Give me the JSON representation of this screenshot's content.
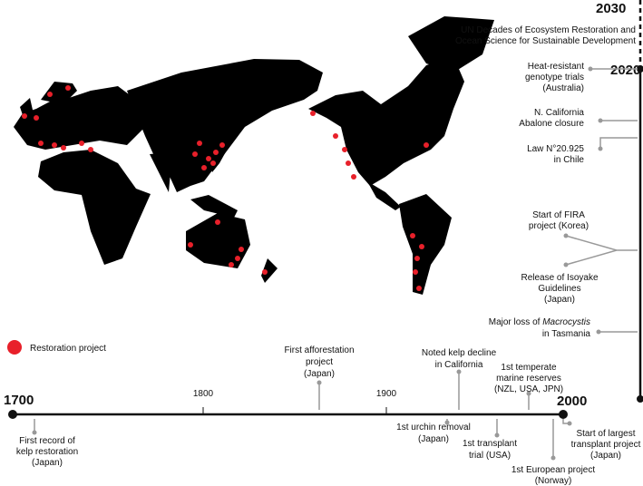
{
  "axis": {
    "horizontal_ticks": [
      "1700",
      "1800",
      "1900",
      "2000"
    ],
    "vertical_ticks": [
      "2030",
      "2020"
    ]
  },
  "legend": {
    "label": "Restoration project"
  },
  "timeline_events": [
    {
      "lines": [
        "First afforestation",
        "project",
        "(Japan)"
      ]
    },
    {
      "lines": [
        "Noted kelp decline",
        "in California"
      ]
    },
    {
      "lines": [
        "1st temperate",
        "marine reserves",
        "(NZL, USA, JPN)"
      ]
    },
    {
      "lines": [
        "First record of",
        "kelp restoration",
        "(Japan)"
      ]
    },
    {
      "lines": [
        "1st urchin removal",
        "(Japan)"
      ]
    },
    {
      "lines": [
        "1st transplant",
        "trial (USA)"
      ]
    },
    {
      "lines": [
        "1st European project",
        "(Norway)"
      ]
    },
    {
      "lines": [
        "Start of largest",
        "transplant project",
        "(Japan)"
      ]
    }
  ],
  "recent_events": [
    {
      "lines": [
        "UN Decades of Ecosystem Restoration and",
        "Ocean Science for Sustainable Development"
      ]
    },
    {
      "lines": [
        "Heat-resistant",
        "genotype trials",
        "(Australia)"
      ]
    },
    {
      "lines": [
        "N. California",
        "Abalone closure"
      ]
    },
    {
      "lines": [
        "Law N°20.925",
        "in Chile"
      ]
    },
    {
      "lines": [
        "Start of FIRA",
        "project (Korea)"
      ]
    },
    {
      "lines": [
        "Release of Isoyake",
        "Guidelines",
        "(Japan)"
      ]
    },
    {
      "lines": [
        "Major loss of",
        "Macrocystis",
        "in Tasmania"
      ]
    }
  ]
}
